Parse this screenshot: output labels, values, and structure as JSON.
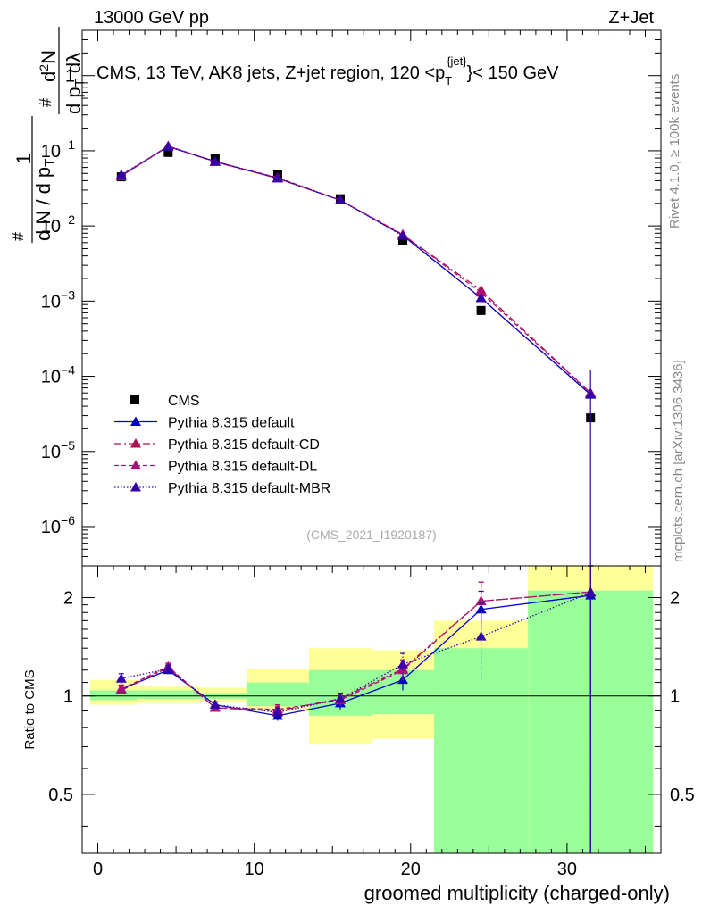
{
  "header": {
    "left": "13000 GeV pp",
    "right": "Z+Jet"
  },
  "side": {
    "rivet": "Rivet 4.1.0, ≥ 100k events",
    "mcplots": "mcplots.cern.ch [arXiv:1306.3436]"
  },
  "chart_data": {
    "type": "scatter",
    "title": "CMS, 13 TeV, AK8 jets, Z+jet region, 120 < p_T^{jet} < 150 GeV",
    "title_main": "CMS, 13 TeV, AK8 jets, Z+jet region, 120 <p",
    "title_sup": "{jet}",
    "title_sub": "T",
    "title_tail": "}< 150 GeV",
    "analysis_tag": "(CMS_2021_I1920187)",
    "xlabel": "groomed multiplicity (charged-only)",
    "ylabel_main": "1/N dN/dp_T d²N/dp_T dλ",
    "ylabel_ratio": "Ratio to CMS",
    "xlim": [
      -1,
      36
    ],
    "x_ticks": [
      0,
      10,
      20,
      30
    ],
    "x_tick_labels": [
      "0",
      "10",
      "20",
      "30"
    ],
    "ylim_main": [
      3e-07,
      4
    ],
    "y_main_scale": "log",
    "y_main_ticks": [
      1,
      0.1,
      0.01,
      0.001,
      0.0001,
      1e-05,
      1e-06
    ],
    "y_main_tick_labels": [
      {
        "base": "1",
        "exp": ""
      },
      {
        "base": "10",
        "exp": "−1"
      },
      {
        "base": "10",
        "exp": "−2"
      },
      {
        "base": "10",
        "exp": "−3"
      },
      {
        "base": "10",
        "exp": "−4"
      },
      {
        "base": "10",
        "exp": "−5"
      },
      {
        "base": "10",
        "exp": "−6"
      }
    ],
    "ylim_ratio": [
      0.33,
      2.5
    ],
    "y_ratio_scale": "log",
    "y_ratio_ticks": [
      0.5,
      1,
      2
    ],
    "y_ratio_tick_labels": [
      "0.5",
      "1",
      "2"
    ],
    "x": [
      1.5,
      4.5,
      7.5,
      11.5,
      15.5,
      19.5,
      24.5,
      31.5
    ],
    "bins": [
      [
        -0.5,
        2.5
      ],
      [
        2.5,
        6.5
      ],
      [
        6.5,
        9.5
      ],
      [
        9.5,
        13.5
      ],
      [
        13.5,
        17.5
      ],
      [
        17.5,
        21.5
      ],
      [
        21.5,
        27.5
      ],
      [
        27.5,
        35.5
      ]
    ],
    "data": {
      "name": "CMS",
      "values": [
        0.045,
        0.095,
        0.078,
        0.049,
        0.023,
        0.0064,
        0.00075,
        2.8e-05
      ]
    },
    "bands": {
      "stat_low": [
        0.97,
        0.98,
        0.98,
        0.93,
        0.87,
        0.88,
        0.3,
        0.3
      ],
      "stat_high": [
        1.04,
        1.04,
        1.02,
        1.1,
        1.2,
        1.2,
        1.4,
        2.1
      ],
      "total_low": [
        0.94,
        0.95,
        0.96,
        0.9,
        0.71,
        0.74,
        0.3,
        0.3
      ],
      "total_high": [
        1.12,
        1.07,
        1.06,
        1.21,
        1.4,
        1.38,
        1.7,
        2.5
      ]
    },
    "series": [
      {
        "name": "Pythia 8.315 default",
        "color": "#0000cc",
        "dash": "",
        "values": [
          0.047,
          0.114,
          0.072,
          0.043,
          0.022,
          0.0075,
          0.0011,
          5.7e-05
        ],
        "ratio": [
          1.05,
          1.2,
          0.94,
          0.87,
          0.95,
          1.12,
          1.84,
          2.03
        ],
        "ratio_err": [
          0.03,
          0.03,
          0.02,
          0.03,
          0.04,
          0.08,
          0.25,
          2.0
        ]
      },
      {
        "name": "Pythia 8.315 default-CD",
        "color": "#b01050",
        "dash": "8,3,2,3",
        "values": [
          0.046,
          0.115,
          0.071,
          0.043,
          0.022,
          0.0076,
          0.0014,
          6e-05
        ],
        "ratio": [
          1.04,
          1.22,
          0.92,
          0.9,
          0.98,
          1.21,
          1.95,
          2.08
        ],
        "ratio_err": [
          0.03,
          0.03,
          0.02,
          0.03,
          0.04,
          0.08,
          0.28,
          2.0
        ]
      },
      {
        "name": "Pythia 8.315 default-DL",
        "color": "#aa1077",
        "dash": "5,3",
        "values": [
          0.046,
          0.116,
          0.071,
          0.044,
          0.022,
          0.0077,
          0.0013,
          6e-05
        ],
        "ratio": [
          1.05,
          1.23,
          0.92,
          0.91,
          0.97,
          1.2,
          1.95,
          2.08
        ],
        "ratio_err": [
          0.03,
          0.03,
          0.02,
          0.03,
          0.04,
          0.08,
          0.28,
          2.0
        ]
      },
      {
        "name": "Pythia 8.315 default-MBR",
        "color": "#3300aa",
        "dash": "1.5,2",
        "values": [
          0.048,
          0.113,
          0.072,
          0.043,
          0.022,
          0.0074,
          0.0011,
          5.8e-05
        ],
        "ratio": [
          1.13,
          1.21,
          0.94,
          0.89,
          0.98,
          1.25,
          1.52,
          2.07
        ],
        "ratio_err": [
          0.04,
          0.03,
          0.02,
          0.03,
          0.04,
          0.1,
          0.4,
          2.0
        ]
      }
    ]
  }
}
